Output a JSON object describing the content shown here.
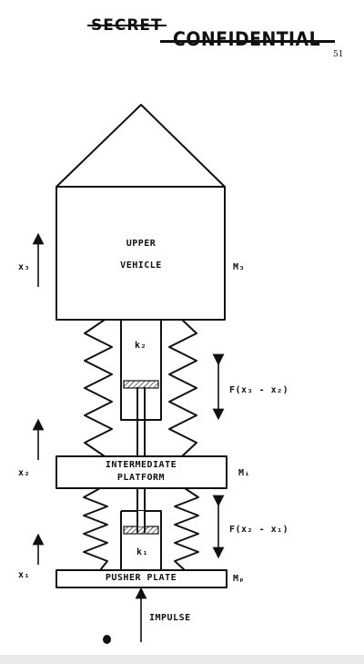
{
  "header": {
    "stamp_struck": "SECRET",
    "stamp_current": "CONFIDENTIAL",
    "page_number": "51"
  },
  "components": {
    "upper_vehicle": {
      "line1": "UPPER",
      "line2": "VEHICLE",
      "mass": "M₃"
    },
    "intermediate_platform": {
      "line1": "INTERMEDIATE",
      "line2": "PLATFORM",
      "mass": "Mᵢ"
    },
    "pusher_plate": {
      "label": "PUSHER PLATE",
      "mass": "Mₚ"
    }
  },
  "springs": {
    "upper_k": "k₂",
    "lower_k": "k₁",
    "upper_force": "F(x₃ - x₂)",
    "lower_force": "F(x₂ - x₁)"
  },
  "displacements": {
    "x3": "x₃",
    "x2": "x₂",
    "x1": "x₁"
  },
  "input": {
    "label": "IMPULSE"
  }
}
